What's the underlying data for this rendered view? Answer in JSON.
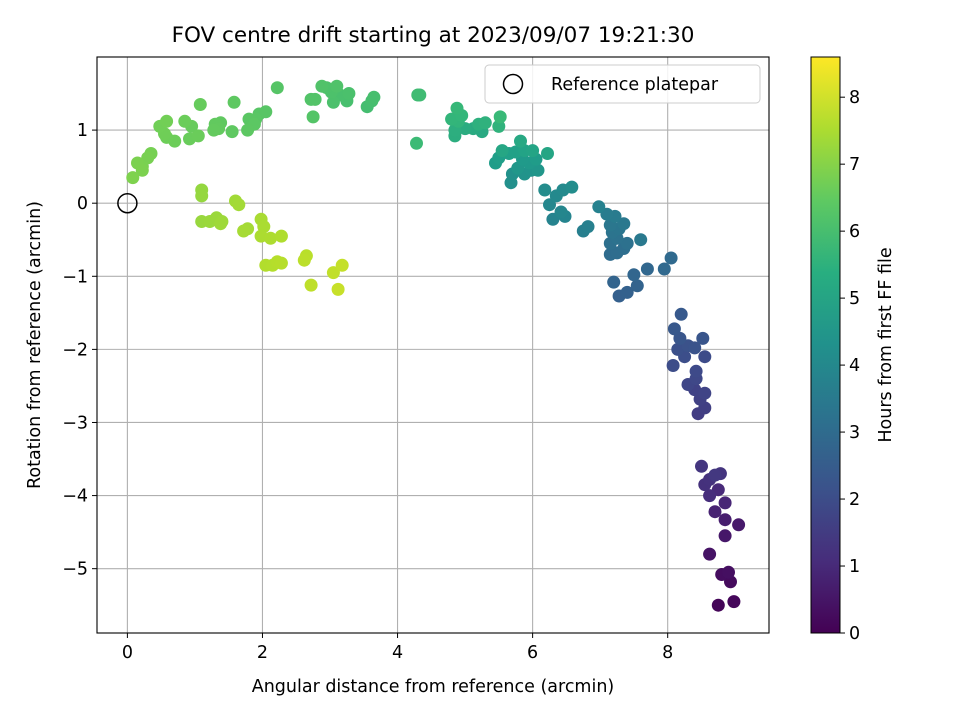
{
  "chart_data": {
    "type": "scatter",
    "title": "FOV centre drift starting at 2023/09/07 19:21:30",
    "xlabel": "Angular distance from reference (arcmin)",
    "ylabel": "Rotation from reference (arcmin)",
    "colorbar_label": "Hours from first FF file",
    "xlim": [
      -0.45,
      9.5
    ],
    "ylim": [
      -5.88,
      2.0
    ],
    "xticks": [
      0,
      2,
      4,
      6,
      8
    ],
    "yticks": [
      1,
      0,
      -1,
      -2,
      -3,
      -4,
      -5
    ],
    "xtick_labels": [
      "0",
      "2",
      "4",
      "6",
      "8"
    ],
    "ytick_labels": [
      "1",
      "0",
      "−1",
      "−2",
      "−3",
      "−4",
      "−5"
    ],
    "colorbar_range": [
      0,
      8.6
    ],
    "colorbar_ticks": [
      0,
      1,
      2,
      3,
      4,
      5,
      6,
      7,
      8
    ],
    "colorbar_tick_labels": [
      "0",
      "1",
      "2",
      "3",
      "4",
      "5",
      "6",
      "7",
      "8"
    ],
    "colormap": "viridis",
    "grid": true,
    "legend": {
      "position": "top-right",
      "entries": [
        "Reference platepar"
      ]
    },
    "reference_point": {
      "x": 0,
      "y": 0
    },
    "series": [
      {
        "values": [
          {
            "x": 8.75,
            "y": -5.5,
            "t": 0.1
          },
          {
            "x": 8.98,
            "y": -5.45,
            "t": 0.15
          },
          {
            "x": 8.93,
            "y": -5.18,
            "t": 0.25
          },
          {
            "x": 8.8,
            "y": -5.08,
            "t": 0.3
          },
          {
            "x": 8.9,
            "y": -5.05,
            "t": 0.35
          },
          {
            "x": 8.62,
            "y": -4.8,
            "t": 0.45
          },
          {
            "x": 8.85,
            "y": -4.55,
            "t": 0.55
          },
          {
            "x": 9.05,
            "y": -4.4,
            "t": 0.6
          },
          {
            "x": 8.85,
            "y": -4.33,
            "t": 0.7
          },
          {
            "x": 8.7,
            "y": -4.22,
            "t": 0.8
          },
          {
            "x": 8.85,
            "y": -4.1,
            "t": 0.9
          },
          {
            "x": 8.75,
            "y": -3.92,
            "t": 1.0
          },
          {
            "x": 8.62,
            "y": -4.0,
            "t": 1.1
          },
          {
            "x": 8.55,
            "y": -3.85,
            "t": 1.2
          },
          {
            "x": 8.62,
            "y": -3.78,
            "t": 1.25
          },
          {
            "x": 8.78,
            "y": -3.7,
            "t": 1.3
          },
          {
            "x": 8.5,
            "y": -3.6,
            "t": 1.35
          },
          {
            "x": 8.7,
            "y": -3.72,
            "t": 1.4
          },
          {
            "x": 8.45,
            "y": -2.88,
            "t": 1.55
          },
          {
            "x": 8.55,
            "y": -2.8,
            "t": 1.6
          },
          {
            "x": 8.48,
            "y": -2.68,
            "t": 1.65
          },
          {
            "x": 8.4,
            "y": -2.55,
            "t": 1.7
          },
          {
            "x": 8.55,
            "y": -2.6,
            "t": 1.75
          },
          {
            "x": 8.3,
            "y": -2.48,
            "t": 1.8
          },
          {
            "x": 8.42,
            "y": -2.4,
            "t": 1.85
          },
          {
            "x": 8.42,
            "y": -2.3,
            "t": 1.9
          },
          {
            "x": 8.55,
            "y": -2.1,
            "t": 1.95
          },
          {
            "x": 8.08,
            "y": -2.22,
            "t": 2.0
          },
          {
            "x": 8.25,
            "y": -2.1,
            "t": 2.05
          },
          {
            "x": 8.15,
            "y": -2.0,
            "t": 2.1
          },
          {
            "x": 8.3,
            "y": -1.95,
            "t": 2.15
          },
          {
            "x": 8.4,
            "y": -1.98,
            "t": 2.2
          },
          {
            "x": 8.52,
            "y": -1.85,
            "t": 2.25
          },
          {
            "x": 8.18,
            "y": -1.85,
            "t": 2.3
          },
          {
            "x": 8.1,
            "y": -1.72,
            "t": 2.35
          },
          {
            "x": 8.2,
            "y": -1.52,
            "t": 2.4
          },
          {
            "x": 7.28,
            "y": -1.27,
            "t": 2.6
          },
          {
            "x": 7.4,
            "y": -1.22,
            "t": 2.65
          },
          {
            "x": 7.55,
            "y": -1.13,
            "t": 2.7
          },
          {
            "x": 7.2,
            "y": -1.08,
            "t": 2.75
          },
          {
            "x": 7.5,
            "y": -0.98,
            "t": 2.8
          },
          {
            "x": 7.7,
            "y": -0.9,
            "t": 2.85
          },
          {
            "x": 7.95,
            "y": -0.9,
            "t": 2.9
          },
          {
            "x": 8.05,
            "y": -0.75,
            "t": 2.95
          },
          {
            "x": 7.15,
            "y": -0.7,
            "t": 3.0
          },
          {
            "x": 7.25,
            "y": -0.68,
            "t": 3.05
          },
          {
            "x": 7.35,
            "y": -0.62,
            "t": 3.1
          },
          {
            "x": 7.15,
            "y": -0.55,
            "t": 3.15
          },
          {
            "x": 7.4,
            "y": -0.55,
            "t": 3.2
          },
          {
            "x": 7.25,
            "y": -0.48,
            "t": 3.25
          },
          {
            "x": 7.18,
            "y": -0.4,
            "t": 3.3
          },
          {
            "x": 7.28,
            "y": -0.35,
            "t": 3.35
          },
          {
            "x": 7.15,
            "y": -0.3,
            "t": 3.4
          },
          {
            "x": 7.35,
            "y": -0.28,
            "t": 3.45
          },
          {
            "x": 7.6,
            "y": -0.5,
            "t": 3.5
          },
          {
            "x": 7.22,
            "y": -0.18,
            "t": 3.55
          },
          {
            "x": 7.1,
            "y": -0.15,
            "t": 3.6
          },
          {
            "x": 6.75,
            "y": -0.38,
            "t": 3.7
          },
          {
            "x": 6.82,
            "y": -0.32,
            "t": 3.75
          },
          {
            "x": 6.98,
            "y": -0.05,
            "t": 3.8
          },
          {
            "x": 6.3,
            "y": -0.22,
            "t": 3.85
          },
          {
            "x": 6.48,
            "y": -0.18,
            "t": 3.9
          },
          {
            "x": 6.42,
            "y": -0.12,
            "t": 3.95
          },
          {
            "x": 6.25,
            "y": -0.02,
            "t": 4.0
          },
          {
            "x": 6.35,
            "y": 0.1,
            "t": 4.05
          },
          {
            "x": 6.45,
            "y": 0.18,
            "t": 4.1
          },
          {
            "x": 6.18,
            "y": 0.18,
            "t": 4.15
          },
          {
            "x": 6.58,
            "y": 0.22,
            "t": 4.2
          },
          {
            "x": 5.68,
            "y": 0.28,
            "t": 4.3
          },
          {
            "x": 5.7,
            "y": 0.4,
            "t": 4.35
          },
          {
            "x": 5.88,
            "y": 0.4,
            "t": 4.4
          },
          {
            "x": 5.98,
            "y": 0.45,
            "t": 4.45
          },
          {
            "x": 6.08,
            "y": 0.45,
            "t": 4.5
          },
          {
            "x": 5.78,
            "y": 0.48,
            "t": 4.55
          },
          {
            "x": 5.95,
            "y": 0.55,
            "t": 4.6
          },
          {
            "x": 5.85,
            "y": 0.6,
            "t": 4.65
          },
          {
            "x": 6.05,
            "y": 0.6,
            "t": 4.7
          },
          {
            "x": 5.45,
            "y": 0.55,
            "t": 4.75
          },
          {
            "x": 5.5,
            "y": 0.62,
            "t": 4.8
          },
          {
            "x": 5.65,
            "y": 0.68,
            "t": 4.85
          },
          {
            "x": 5.75,
            "y": 0.7,
            "t": 4.9
          },
          {
            "x": 5.88,
            "y": 0.72,
            "t": 4.95
          },
          {
            "x": 6.0,
            "y": 0.72,
            "t": 5.0
          },
          {
            "x": 6.22,
            "y": 0.68,
            "t": 5.05
          },
          {
            "x": 5.55,
            "y": 0.72,
            "t": 5.1
          },
          {
            "x": 5.82,
            "y": 0.85,
            "t": 5.15
          },
          {
            "x": 5.25,
            "y": 0.98,
            "t": 5.2
          },
          {
            "x": 5.12,
            "y": 1.02,
            "t": 5.25
          },
          {
            "x": 5.0,
            "y": 1.02,
            "t": 5.3
          },
          {
            "x": 4.85,
            "y": 0.92,
            "t": 5.35
          },
          {
            "x": 4.85,
            "y": 1.0,
            "t": 5.4
          },
          {
            "x": 5.2,
            "y": 1.08,
            "t": 5.45
          },
          {
            "x": 5.3,
            "y": 1.1,
            "t": 5.5
          },
          {
            "x": 5.5,
            "y": 1.05,
            "t": 5.55
          },
          {
            "x": 4.9,
            "y": 1.12,
            "t": 5.6
          },
          {
            "x": 4.8,
            "y": 1.15,
            "t": 5.65
          },
          {
            "x": 4.95,
            "y": 1.2,
            "t": 5.7
          },
          {
            "x": 4.88,
            "y": 1.3,
            "t": 5.75
          },
          {
            "x": 5.52,
            "y": 1.18,
            "t": 5.8
          },
          {
            "x": 4.28,
            "y": 0.82,
            "t": 5.85
          },
          {
            "x": 4.3,
            "y": 1.48,
            "t": 5.9
          },
          {
            "x": 4.33,
            "y": 1.48,
            "t": 5.92
          },
          {
            "x": 3.55,
            "y": 1.32,
            "t": 6.0
          },
          {
            "x": 3.62,
            "y": 1.4,
            "t": 6.02
          },
          {
            "x": 3.65,
            "y": 1.45,
            "t": 6.04
          },
          {
            "x": 3.25,
            "y": 1.4,
            "t": 6.06
          },
          {
            "x": 3.15,
            "y": 1.48,
            "t": 6.08
          },
          {
            "x": 3.28,
            "y": 1.5,
            "t": 6.1
          },
          {
            "x": 3.05,
            "y": 1.38,
            "t": 6.12
          },
          {
            "x": 3.02,
            "y": 1.52,
            "t": 6.14
          },
          {
            "x": 2.95,
            "y": 1.58,
            "t": 6.16
          },
          {
            "x": 3.1,
            "y": 1.6,
            "t": 6.18
          },
          {
            "x": 2.88,
            "y": 1.6,
            "t": 6.2
          },
          {
            "x": 2.72,
            "y": 1.42,
            "t": 6.22
          },
          {
            "x": 2.78,
            "y": 1.42,
            "t": 6.24
          },
          {
            "x": 2.75,
            "y": 1.18,
            "t": 6.26
          },
          {
            "x": 2.22,
            "y": 1.58,
            "t": 6.28
          },
          {
            "x": 1.95,
            "y": 1.22,
            "t": 6.3
          },
          {
            "x": 2.05,
            "y": 1.25,
            "t": 6.32
          },
          {
            "x": 1.9,
            "y": 1.15,
            "t": 6.34
          },
          {
            "x": 1.8,
            "y": 1.15,
            "t": 6.36
          },
          {
            "x": 1.88,
            "y": 1.08,
            "t": 6.38
          },
          {
            "x": 1.78,
            "y": 1.0,
            "t": 6.4
          },
          {
            "x": 1.58,
            "y": 1.38,
            "t": 6.42
          },
          {
            "x": 1.55,
            "y": 0.98,
            "t": 6.44
          },
          {
            "x": 1.38,
            "y": 1.1,
            "t": 6.46
          },
          {
            "x": 1.3,
            "y": 1.08,
            "t": 6.48
          },
          {
            "x": 1.35,
            "y": 1.02,
            "t": 6.5
          },
          {
            "x": 1.28,
            "y": 1.0,
            "t": 6.52
          },
          {
            "x": 1.08,
            "y": 1.35,
            "t": 6.56
          },
          {
            "x": 0.95,
            "y": 1.05,
            "t": 6.58
          },
          {
            "x": 0.92,
            "y": 0.88,
            "t": 6.6
          },
          {
            "x": 1.05,
            "y": 0.92,
            "t": 6.62
          },
          {
            "x": 0.85,
            "y": 1.12,
            "t": 6.64
          },
          {
            "x": 0.7,
            "y": 0.85,
            "t": 6.66
          },
          {
            "x": 0.58,
            "y": 0.9,
            "t": 6.68
          },
          {
            "x": 0.55,
            "y": 0.95,
            "t": 6.7
          },
          {
            "x": 0.48,
            "y": 1.05,
            "t": 6.72
          },
          {
            "x": 0.58,
            "y": 1.12,
            "t": 6.74
          },
          {
            "x": 0.35,
            "y": 0.68,
            "t": 6.8
          },
          {
            "x": 0.3,
            "y": 0.62,
            "t": 6.82
          },
          {
            "x": 0.22,
            "y": 0.5,
            "t": 6.84
          },
          {
            "x": 0.15,
            "y": 0.55,
            "t": 6.86
          },
          {
            "x": 0.22,
            "y": 0.45,
            "t": 6.88
          },
          {
            "x": 0.08,
            "y": 0.35,
            "t": 6.9
          },
          {
            "x": 1.1,
            "y": 0.18,
            "t": 7.2
          },
          {
            "x": 1.1,
            "y": 0.1,
            "t": 7.22
          },
          {
            "x": 1.1,
            "y": -0.25,
            "t": 7.25
          },
          {
            "x": 1.22,
            "y": -0.25,
            "t": 7.28
          },
          {
            "x": 1.32,
            "y": -0.2,
            "t": 7.3
          },
          {
            "x": 1.4,
            "y": -0.25,
            "t": 7.32
          },
          {
            "x": 1.38,
            "y": -0.28,
            "t": 7.34
          },
          {
            "x": 1.6,
            "y": 0.03,
            "t": 7.38
          },
          {
            "x": 1.65,
            "y": -0.02,
            "t": 7.4
          },
          {
            "x": 1.78,
            "y": -0.35,
            "t": 7.42
          },
          {
            "x": 1.72,
            "y": -0.38,
            "t": 7.44
          },
          {
            "x": 1.98,
            "y": -0.22,
            "t": 7.48
          },
          {
            "x": 2.02,
            "y": -0.32,
            "t": 7.5
          },
          {
            "x": 1.98,
            "y": -0.45,
            "t": 7.52
          },
          {
            "x": 2.12,
            "y": -0.48,
            "t": 7.54
          },
          {
            "x": 2.28,
            "y": -0.45,
            "t": 7.56
          },
          {
            "x": 2.05,
            "y": -0.85,
            "t": 7.6
          },
          {
            "x": 2.15,
            "y": -0.85,
            "t": 7.62
          },
          {
            "x": 2.22,
            "y": -0.8,
            "t": 7.64
          },
          {
            "x": 2.28,
            "y": -0.82,
            "t": 7.66
          },
          {
            "x": 2.65,
            "y": -0.72,
            "t": 7.7
          },
          {
            "x": 2.62,
            "y": -0.78,
            "t": 7.72
          },
          {
            "x": 2.72,
            "y": -1.12,
            "t": 7.76
          },
          {
            "x": 3.05,
            "y": -0.95,
            "t": 7.8
          },
          {
            "x": 3.18,
            "y": -0.85,
            "t": 7.84
          },
          {
            "x": 3.12,
            "y": -1.18,
            "t": 7.88
          }
        ]
      }
    ]
  }
}
